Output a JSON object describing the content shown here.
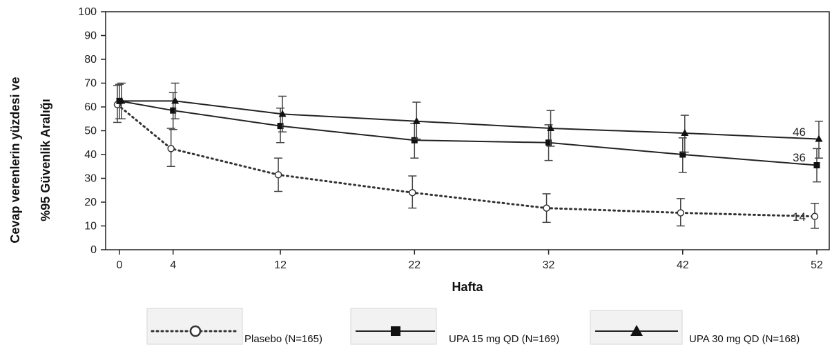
{
  "chart_data": {
    "type": "line",
    "xlabel": "Hafta",
    "ylabel": "Cevap verenlerin yüzdesi ve %95 Güvenlik Aralığı",
    "ylabel_lines": [
      "Cevap verenlerin yüzdesi ve",
      "%95 Güvenlik Aralığı"
    ],
    "x": [
      0,
      4,
      12,
      22,
      32,
      42,
      52
    ],
    "x_ticks": [
      "0",
      "4",
      "12",
      "22",
      "32",
      "42",
      "52"
    ],
    "y_ticks": [
      "0",
      "10",
      "20",
      "30",
      "40",
      "50",
      "60",
      "70",
      "80",
      "90",
      "100"
    ],
    "ylim": [
      0,
      100
    ],
    "grid": false,
    "legend_position": "bottom",
    "series": [
      {
        "name": "Plasebo (N=165)",
        "style": "dotted",
        "marker": "open-circle",
        "values": [
          61,
          42.5,
          31.5,
          24,
          17.5,
          15.5,
          14
        ],
        "ci_low": [
          53.5,
          35,
          24.5,
          17.5,
          11.5,
          10,
          9
        ],
        "ci_high": [
          69,
          51,
          38.5,
          31,
          23.5,
          21.5,
          19.5
        ],
        "end_label": "14"
      },
      {
        "name": "UPA 15 mg QD (N=169)",
        "style": "solid",
        "marker": "filled-square",
        "values": [
          62.5,
          58.5,
          52,
          46,
          45,
          40,
          35.5
        ],
        "ci_low": [
          55,
          50.5,
          45,
          38.5,
          37.5,
          32.5,
          28.5
        ],
        "ci_high": [
          69.5,
          66,
          59.5,
          53,
          52.5,
          47,
          42.5
        ],
        "end_label": "36"
      },
      {
        "name": "UPA 30 mg QD (N=168)",
        "style": "solid",
        "marker": "filled-triangle",
        "values": [
          62.5,
          62.5,
          57,
          54,
          51,
          49,
          46.5
        ],
        "ci_low": [
          55,
          55,
          49.5,
          46.5,
          43.5,
          41,
          38.5
        ],
        "ci_high": [
          70,
          70,
          64.5,
          62,
          58.5,
          56.5,
          54
        ],
        "end_label": "46"
      }
    ]
  }
}
